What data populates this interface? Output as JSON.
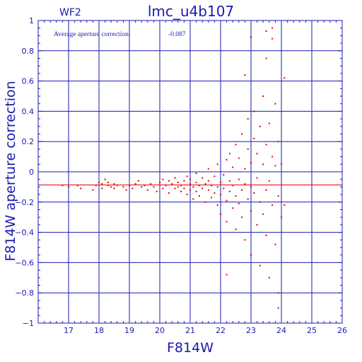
{
  "chart_data": {
    "type": "scatter",
    "corner_label": "WF2",
    "title": "lmc_u4b107",
    "annotation_label": "Average aperture correction:",
    "annotation_value": "-0.087",
    "xlabel": "F814W",
    "ylabel": "F814W aperture correction",
    "xlim": [
      16,
      26
    ],
    "ylim": [
      -1,
      1
    ],
    "xticks": [
      17,
      18,
      19,
      20,
      21,
      22,
      23,
      24,
      25,
      26
    ],
    "yticks": [
      -1,
      -0.8,
      -0.6,
      -0.4,
      -0.2,
      0,
      0.2,
      0.4,
      0.6,
      0.8,
      1
    ],
    "ytick_labels": [
      "−1",
      "−0.8",
      "−0.6",
      "−0.4",
      "−0.2",
      "0",
      "0.2",
      "0.4",
      "0.6",
      "0.8",
      "1"
    ],
    "grid": true,
    "reference_line_y": -0.087,
    "colors": {
      "axes": "#1a1ab0",
      "points": "#e00000",
      "reference_line": "#e00000"
    },
    "points": [
      [
        16.8,
        -0.09
      ],
      [
        17.0,
        -0.1
      ],
      [
        17.3,
        -0.09
      ],
      [
        17.4,
        -0.11
      ],
      [
        17.8,
        -0.12
      ],
      [
        17.9,
        -0.09
      ],
      [
        18.0,
        -0.07
      ],
      [
        18.1,
        -0.08
      ],
      [
        18.1,
        -0.11
      ],
      [
        18.2,
        -0.05
      ],
      [
        18.3,
        -0.09
      ],
      [
        18.3,
        -0.07
      ],
      [
        18.4,
        -0.1
      ],
      [
        18.5,
        -0.08
      ],
      [
        18.5,
        -0.11
      ],
      [
        18.6,
        -0.09
      ],
      [
        18.8,
        -0.1
      ],
      [
        18.9,
        -0.12
      ],
      [
        19.0,
        -0.09
      ],
      [
        19.1,
        -0.11
      ],
      [
        19.2,
        -0.08
      ],
      [
        19.3,
        -0.06
      ],
      [
        19.4,
        -0.1
      ],
      [
        19.5,
        -0.09
      ],
      [
        19.6,
        -0.12
      ],
      [
        19.7,
        -0.08
      ],
      [
        19.8,
        -0.1
      ],
      [
        19.9,
        -0.13
      ],
      [
        20.0,
        -0.07
      ],
      [
        20.1,
        -0.05
      ],
      [
        20.1,
        -0.11
      ],
      [
        20.2,
        -0.09
      ],
      [
        20.3,
        -0.06
      ],
      [
        20.3,
        -0.14
      ],
      [
        20.4,
        -0.08
      ],
      [
        20.5,
        -0.11
      ],
      [
        20.5,
        -0.04
      ],
      [
        20.6,
        -0.1
      ],
      [
        20.6,
        -0.07
      ],
      [
        20.7,
        -0.13
      ],
      [
        20.7,
        -0.09
      ],
      [
        20.8,
        -0.06
      ],
      [
        20.8,
        -0.11
      ],
      [
        20.9,
        -0.03
      ],
      [
        20.9,
        -0.15
      ],
      [
        21.0,
        -0.08
      ],
      [
        21.0,
        -0.12
      ],
      [
        21.0,
        -0.05
      ],
      [
        21.1,
        -0.1
      ],
      [
        21.1,
        -0.18
      ],
      [
        21.2,
        -0.07
      ],
      [
        21.2,
        -0.13
      ],
      [
        21.2,
        -0.01
      ],
      [
        21.3,
        -0.09
      ],
      [
        21.3,
        -0.16
      ],
      [
        21.4,
        -0.04
      ],
      [
        21.4,
        -0.11
      ],
      [
        21.5,
        -0.08
      ],
      [
        21.5,
        -0.2
      ],
      [
        21.6,
        -0.06
      ],
      [
        21.6,
        -0.12
      ],
      [
        21.6,
        0.02
      ],
      [
        21.7,
        -0.09
      ],
      [
        21.7,
        -0.17
      ],
      [
        21.8,
        -0.03
      ],
      [
        21.8,
        -0.14
      ],
      [
        21.9,
        -0.1
      ],
      [
        21.9,
        -0.22
      ],
      [
        21.9,
        0.05
      ],
      [
        22.0,
        -0.07
      ],
      [
        22.0,
        -0.15
      ],
      [
        22.0,
        -0.28
      ],
      [
        22.1,
        -0.02
      ],
      [
        22.1,
        -0.11
      ],
      [
        22.2,
        0.08
      ],
      [
        22.2,
        -0.19
      ],
      [
        22.2,
        -0.33
      ],
      [
        22.3,
        -0.06
      ],
      [
        22.3,
        -0.13
      ],
      [
        22.3,
        0.12
      ],
      [
        22.4,
        -0.24
      ],
      [
        22.4,
        -0.09
      ],
      [
        22.4,
        0.03
      ],
      [
        22.5,
        -0.16
      ],
      [
        22.5,
        -0.38
      ],
      [
        22.5,
        0.18
      ],
      [
        22.6,
        -0.05
      ],
      [
        22.6,
        -0.21
      ],
      [
        22.6,
        0.09
      ],
      [
        22.7,
        -0.12
      ],
      [
        22.7,
        -0.3
      ],
      [
        22.7,
        0.25
      ],
      [
        22.8,
        -0.08
      ],
      [
        22.8,
        0.02
      ],
      [
        22.8,
        -0.45
      ],
      [
        22.9,
        0.15
      ],
      [
        22.9,
        -0.18
      ],
      [
        22.9,
        0.35
      ],
      [
        23.0,
        -0.1
      ],
      [
        23.0,
        -0.26
      ],
      [
        23.0,
        0.06
      ],
      [
        23.0,
        -0.55
      ],
      [
        23.1,
        0.22
      ],
      [
        23.1,
        -0.14
      ],
      [
        23.1,
        0.4
      ],
      [
        23.2,
        -0.35
      ],
      [
        23.2,
        -0.04
      ],
      [
        23.2,
        0.12
      ],
      [
        23.3,
        -0.2
      ],
      [
        23.3,
        0.3
      ],
      [
        23.3,
        -0.62
      ],
      [
        23.4,
        0.05
      ],
      [
        23.4,
        -0.28
      ],
      [
        23.4,
        0.5
      ],
      [
        23.5,
        -0.12
      ],
      [
        23.5,
        0.18
      ],
      [
        23.5,
        -0.42
      ],
      [
        23.5,
        0.75
      ],
      [
        23.6,
        -0.06
      ],
      [
        23.6,
        0.32
      ],
      [
        23.6,
        -0.7
      ],
      [
        23.7,
        0.1
      ],
      [
        23.7,
        -0.22
      ],
      [
        23.7,
        0.88
      ],
      [
        23.8,
        -0.48
      ],
      [
        23.8,
        0.04
      ],
      [
        23.8,
        0.45
      ],
      [
        23.9,
        -0.16
      ],
      [
        23.9,
        -0.8
      ],
      [
        23.9,
        0.2
      ],
      [
        24.0,
        -0.3
      ],
      [
        24.0,
        0.05
      ],
      [
        24.1,
        -0.22
      ],
      [
        24.1,
        0.62
      ],
      [
        23.5,
        0.93
      ],
      [
        23.7,
        0.95
      ],
      [
        23.0,
        0.89
      ],
      [
        22.8,
        0.64
      ],
      [
        23.9,
        -0.9
      ],
      [
        22.2,
        -0.68
      ]
    ]
  }
}
